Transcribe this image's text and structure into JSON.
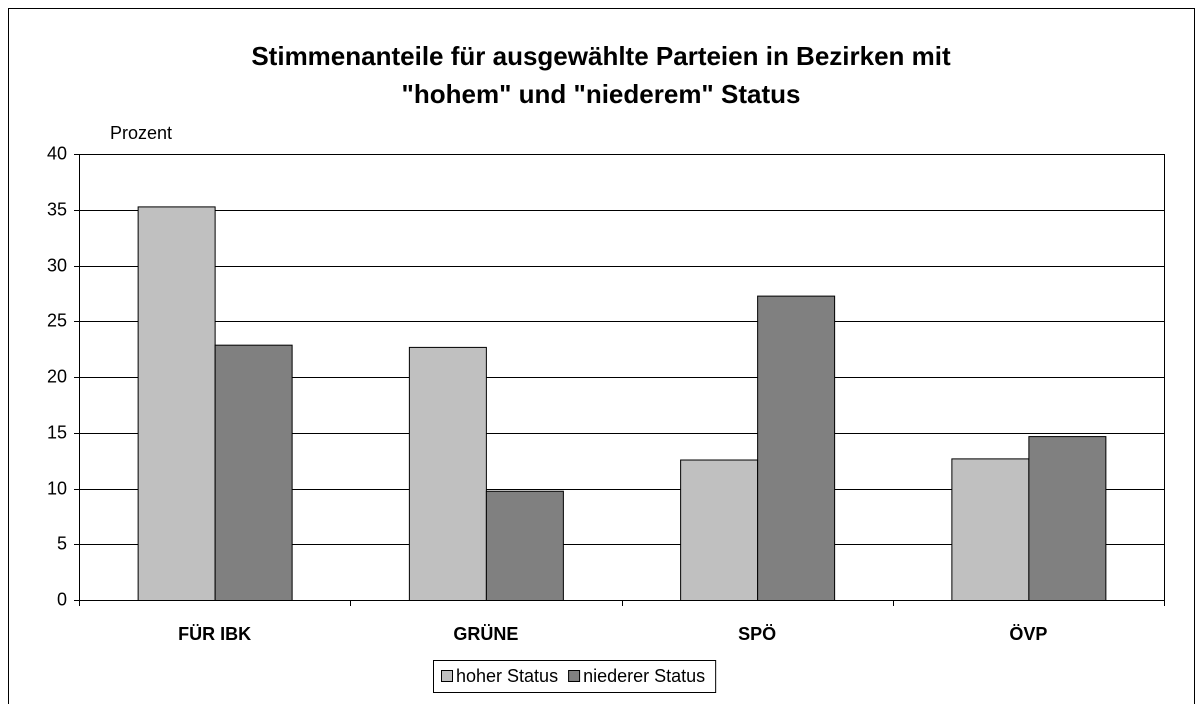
{
  "chart_data": {
    "type": "bar",
    "title": [
      "Stimmenanteile für ausgewählte Parteien in Bezirken mit",
      "\"hohem\" und \"niederem\" Status"
    ],
    "y_label": "Prozent",
    "categories": [
      "FÜR IBK",
      "GRÜNE",
      "SPÖ",
      "ÖVP"
    ],
    "series": [
      {
        "name": "hoher Status",
        "color": "#c0c0c0",
        "values": [
          35.3,
          22.7,
          12.6,
          12.7
        ]
      },
      {
        "name": "niederer Status",
        "color": "#808080",
        "values": [
          22.9,
          9.8,
          27.3,
          14.7
        ]
      }
    ],
    "ylim": [
      0,
      40
    ],
    "yticks": [
      0,
      5,
      10,
      15,
      20,
      25,
      30,
      35,
      40
    ],
    "grid": true,
    "legend": "bottom"
  }
}
